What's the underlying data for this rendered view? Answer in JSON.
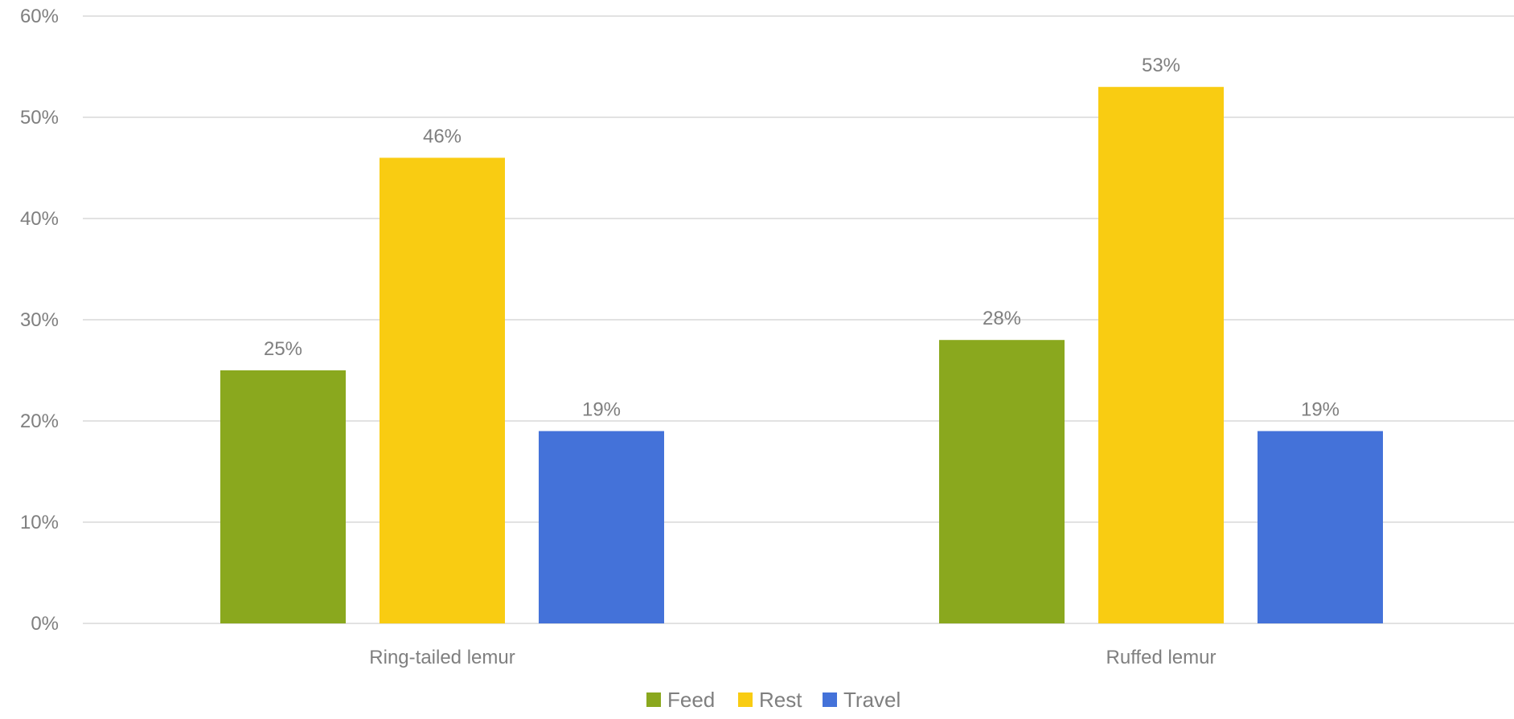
{
  "chart_data": {
    "type": "bar",
    "categories": [
      "Ring-tailed lemur",
      "Ruffed lemur"
    ],
    "series": [
      {
        "name": "Feed",
        "values": [
          25,
          28
        ],
        "labels": [
          "25%",
          "28%"
        ],
        "color": "#8aa81e"
      },
      {
        "name": "Rest",
        "values": [
          46,
          53
        ],
        "labels": [
          "46%",
          "53%"
        ],
        "color": "#f9cc12"
      },
      {
        "name": "Travel",
        "values": [
          19,
          19
        ],
        "labels": [
          "19%",
          "19%"
        ],
        "color": "#4472d9"
      }
    ],
    "title": "",
    "xlabel": "",
    "ylabel": "",
    "ylim": [
      0,
      60
    ],
    "yticks": [
      0,
      10,
      20,
      30,
      40,
      50,
      60
    ],
    "ytick_labels": [
      "0%",
      "10%",
      "20%",
      "30%",
      "40%",
      "50%",
      "60%"
    ],
    "grid": true,
    "legend_position": "bottom",
    "gridline_color": "#d9d9d9",
    "text_color": "#7f7f7f"
  }
}
